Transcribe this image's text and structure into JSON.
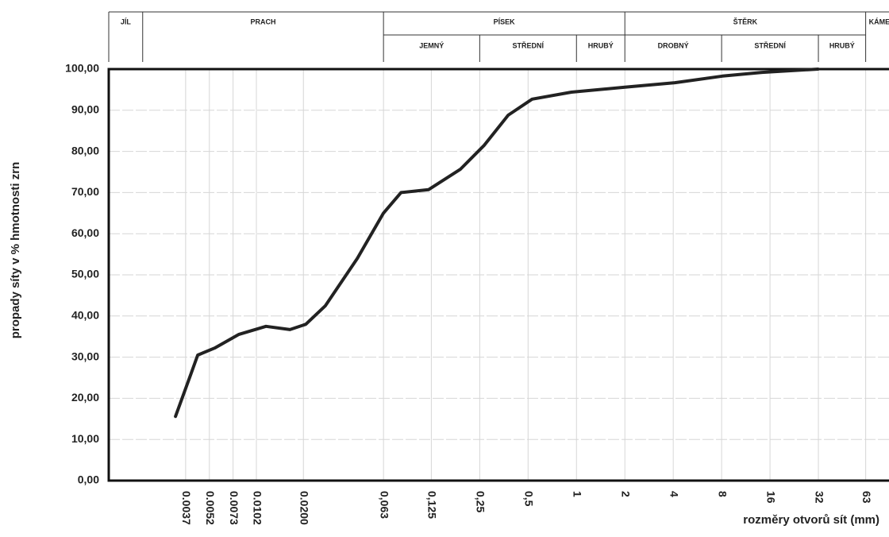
{
  "chart_data": {
    "type": "line",
    "x_label": "rozměry otvorů sít (mm)",
    "y_label": "propady síty v % hmotnosti zrn",
    "log_x": true,
    "grid": true,
    "xlim": [
      0.00123,
      88
    ],
    "ylim": [
      0,
      100
    ],
    "xticks": [
      {
        "value": 0.0037,
        "label": "0.0037"
      },
      {
        "value": 0.0052,
        "label": "0.0052"
      },
      {
        "value": 0.0073,
        "label": "0.0073"
      },
      {
        "value": 0.0102,
        "label": "0.0102"
      },
      {
        "value": 0.02,
        "label": "0.0200"
      },
      {
        "value": 0.063,
        "label": "0,063"
      },
      {
        "value": 0.125,
        "label": "0,125"
      },
      {
        "value": 0.25,
        "label": "0,25"
      },
      {
        "value": 0.5,
        "label": "0,5"
      },
      1,
      2,
      4,
      8,
      16,
      32,
      63
    ],
    "yticks": [
      {
        "value": 0,
        "label": "0,00"
      },
      {
        "value": 10,
        "label": "10,00"
      },
      {
        "value": 20,
        "label": "20,00"
      },
      {
        "value": 30,
        "label": "30,00"
      },
      {
        "value": 40,
        "label": "40,00"
      },
      {
        "value": 50,
        "label": "50,00"
      },
      {
        "value": 60,
        "label": "60,00"
      },
      {
        "value": 70,
        "label": "70,00"
      },
      {
        "value": 80,
        "label": "80,00"
      },
      {
        "value": 90,
        "label": "90,00"
      },
      {
        "value": 100,
        "label": "100,00"
      }
    ],
    "zones": [
      {
        "label": "JÍL",
        "to": 0.002
      },
      {
        "label": "PRACH",
        "from": 0.002,
        "to": 0.063
      },
      {
        "label": "PÍSEK",
        "from": 0.063,
        "to": 2,
        "parts": [
          {
            "label": "JEMNÝ",
            "from": 0.063,
            "to": 0.25
          },
          {
            "label": "STŘEDNÍ",
            "from": 0.25,
            "to": 1
          },
          {
            "label": "HRUBÝ",
            "from": 1,
            "to": 2
          }
        ]
      },
      {
        "label": "ŠTĚRK",
        "from": 2,
        "to": 63,
        "parts": [
          {
            "label": "DROBNÝ",
            "from": 2,
            "to": 8
          },
          {
            "label": "STŘEDNÍ",
            "from": 8,
            "to": 32
          },
          {
            "label": "HRUBÝ",
            "from": 32,
            "to": 63
          }
        ]
      },
      {
        "label": "KÁMEN",
        "from": 63
      }
    ],
    "series": [
      {
        "color": "#222222",
        "x": [
          0.0032,
          0.004,
          0.0044,
          0.0056,
          0.0079,
          0.0117,
          0.0165,
          0.0207,
          0.0274,
          0.0433,
          0.063,
          0.081,
          0.12,
          0.19,
          0.267,
          0.376,
          0.53,
          0.93,
          2.0,
          4.1,
          8.1,
          14.3,
          31.8
        ],
        "values": [
          15.6,
          26,
          30.5,
          32.2,
          35.5,
          37.5,
          36.7,
          38,
          42.5,
          54,
          65,
          70,
          70.7,
          75.7,
          81.5,
          88.8,
          92.7,
          94.4,
          95.6,
          96.7,
          98.3,
          99.2,
          100
        ]
      }
    ]
  }
}
